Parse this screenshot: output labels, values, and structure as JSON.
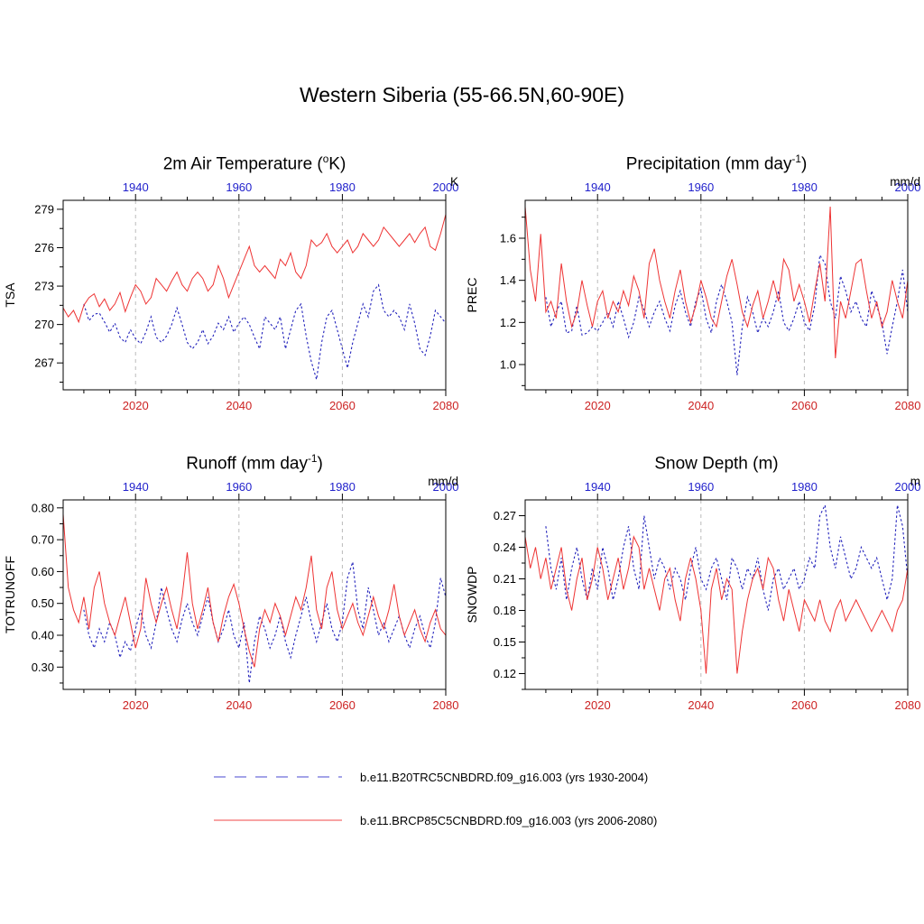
{
  "title": "Western Siberia (55-66.5N,60-90E)",
  "colors": {
    "top_axis_labels": "#2222cc",
    "bottom_axis_labels": "#cc2222",
    "grid": "#bbbbbb",
    "historical_line": "#2222bb",
    "rcp85_line": "#ee3333"
  },
  "legend": {
    "items": [
      {
        "label": "b.e11.B20TRC5CNBDRD.f09_g16.003 (yrs 1930-2004)",
        "color": "#3333cc",
        "style": "dashed"
      },
      {
        "label": "b.e11.BRCP85C5CNBDRD.f09_g16.003 (yrs 2006-2080)",
        "color": "#ee3333",
        "style": "solid"
      }
    ]
  },
  "chart_data": [
    {
      "type": "line",
      "title_pre": "2m Air Temperature (",
      "title_sup": "o",
      "title_post": "K)",
      "ylabel": "TSA",
      "unit": "K",
      "ylim": [
        264.9,
        279.7
      ],
      "yticks": [
        267,
        270,
        273,
        276,
        279
      ],
      "ytick_labels": [
        "267",
        "270",
        "273",
        "276",
        "279"
      ],
      "top_axis": {
        "domain": [
          1926,
          2000
        ],
        "ticks": [
          1940,
          1960,
          1980,
          2000
        ]
      },
      "bottom_axis": {
        "domain": [
          2006,
          2080
        ],
        "ticks": [
          2020,
          2040,
          2060,
          2080
        ]
      },
      "grid_years": [
        2020,
        2040,
        2060
      ],
      "series": [
        {
          "id": "historical",
          "axis": "top",
          "start_year": 1930,
          "color": "#2222bb",
          "style": "dashed",
          "values": [
            271.6,
            270.3,
            270.8,
            270.9,
            270.2,
            269.4,
            270.1,
            269.0,
            268.6,
            269.6,
            268.9,
            268.5,
            269.4,
            270.6,
            269.0,
            268.6,
            269.1,
            270.0,
            271.3,
            270.0,
            268.6,
            268.1,
            268.6,
            269.6,
            268.5,
            269.1,
            270.1,
            269.6,
            270.6,
            269.4,
            270.1,
            270.6,
            270.0,
            269.0,
            268.1,
            270.6,
            270.1,
            269.6,
            270.6,
            268.1,
            269.6,
            271.1,
            271.6,
            269.1,
            267.1,
            265.7,
            268.6,
            270.6,
            271.1,
            269.6,
            268.1,
            266.6,
            268.6,
            270.1,
            271.6,
            270.6,
            272.6,
            273.1,
            271.1,
            270.6,
            271.1,
            270.6,
            269.6,
            271.6,
            270.1,
            268.1,
            267.6,
            269.1,
            271.1,
            270.6,
            270.1,
            270.6,
            270.1,
            269.6,
            269.1
          ]
        },
        {
          "id": "rcp85",
          "axis": "bottom",
          "start_year": 2006,
          "color": "#ee3333",
          "style": "solid",
          "values": [
            271.3,
            270.6,
            271.1,
            270.2,
            271.5,
            272.1,
            272.4,
            271.4,
            272.0,
            271.1,
            271.6,
            272.5,
            271.0,
            272.1,
            273.1,
            272.6,
            271.6,
            272.1,
            273.6,
            273.1,
            272.6,
            273.4,
            274.1,
            273.1,
            272.6,
            273.6,
            274.1,
            273.6,
            272.6,
            273.1,
            274.6,
            273.6,
            272.1,
            273.1,
            274.1,
            275.1,
            276.1,
            274.6,
            274.1,
            274.6,
            274.1,
            273.6,
            275.1,
            274.6,
            275.6,
            274.1,
            273.6,
            274.6,
            276.6,
            276.1,
            276.4,
            277.1,
            276.1,
            275.6,
            276.1,
            276.6,
            275.6,
            276.1,
            277.1,
            276.6,
            276.1,
            276.6,
            277.6,
            277.1,
            276.6,
            276.1,
            276.6,
            277.1,
            276.4,
            277.1,
            277.6,
            276.1,
            275.8,
            277.1,
            278.6
          ]
        }
      ]
    },
    {
      "type": "line",
      "title_pre": "Precipitation (mm day",
      "title_sup": "-1",
      "title_post": ")",
      "ylabel": "PREC",
      "unit": "mm/d",
      "ylim": [
        0.88,
        1.78
      ],
      "yticks": [
        1.0,
        1.2,
        1.4,
        1.6
      ],
      "ytick_labels": [
        "1.0",
        "1.2",
        "1.4",
        "1.6"
      ],
      "top_axis": {
        "domain": [
          1926,
          2000
        ],
        "ticks": [
          1940,
          1960,
          1980,
          2000
        ]
      },
      "bottom_axis": {
        "domain": [
          2006,
          2080
        ],
        "ticks": [
          2020,
          2040,
          2060,
          2080
        ]
      },
      "grid_years": [
        2020,
        2040,
        2060
      ],
      "series": [
        {
          "id": "historical",
          "axis": "top",
          "start_year": 1930,
          "color": "#2222bb",
          "style": "dashed",
          "values": [
            1.32,
            1.18,
            1.25,
            1.3,
            1.15,
            1.16,
            1.28,
            1.14,
            1.15,
            1.18,
            1.16,
            1.2,
            1.25,
            1.18,
            1.3,
            1.22,
            1.13,
            1.2,
            1.32,
            1.26,
            1.18,
            1.25,
            1.3,
            1.22,
            1.16,
            1.28,
            1.35,
            1.25,
            1.18,
            1.3,
            1.36,
            1.22,
            1.15,
            1.3,
            1.38,
            1.3,
            1.2,
            0.95,
            1.18,
            1.32,
            1.25,
            1.15,
            1.22,
            1.18,
            1.25,
            1.35,
            1.2,
            1.16,
            1.22,
            1.3,
            1.2,
            1.16,
            1.28,
            1.52,
            1.48,
            1.3,
            1.22,
            1.42,
            1.35,
            1.25,
            1.3,
            1.22,
            1.18,
            1.35,
            1.28,
            1.2,
            1.05,
            1.18,
            1.3,
            1.45,
            1.25,
            1.18,
            1.42,
            1.48,
            1.3
          ]
        },
        {
          "id": "rcp85",
          "axis": "bottom",
          "start_year": 2006,
          "color": "#ee3333",
          "style": "solid",
          "values": [
            1.75,
            1.45,
            1.3,
            1.62,
            1.25,
            1.3,
            1.22,
            1.48,
            1.3,
            1.18,
            1.25,
            1.4,
            1.28,
            1.18,
            1.3,
            1.35,
            1.22,
            1.3,
            1.25,
            1.35,
            1.28,
            1.42,
            1.35,
            1.22,
            1.48,
            1.55,
            1.4,
            1.3,
            1.22,
            1.35,
            1.45,
            1.3,
            1.2,
            1.28,
            1.4,
            1.32,
            1.22,
            1.18,
            1.3,
            1.42,
            1.5,
            1.38,
            1.25,
            1.18,
            1.28,
            1.35,
            1.22,
            1.3,
            1.4,
            1.3,
            1.5,
            1.45,
            1.3,
            1.38,
            1.3,
            1.2,
            1.35,
            1.48,
            1.3,
            1.75,
            1.03,
            1.3,
            1.22,
            1.35,
            1.48,
            1.5,
            1.35,
            1.22,
            1.3,
            1.18,
            1.25,
            1.4,
            1.3,
            1.22,
            1.4
          ]
        }
      ]
    },
    {
      "type": "line",
      "title_pre": "Runoff (mm day",
      "title_sup": "-1",
      "title_post": ")",
      "ylabel": "TOTRUNOFF",
      "unit": "mm/d",
      "ylim": [
        0.23,
        0.825
      ],
      "yticks": [
        0.3,
        0.4,
        0.5,
        0.6,
        0.7,
        0.8
      ],
      "ytick_labels": [
        "0.30",
        "0.40",
        "0.50",
        "0.60",
        "0.70",
        "0.80"
      ],
      "top_axis": {
        "domain": [
          1926,
          2000
        ],
        "ticks": [
          1940,
          1960,
          1980,
          2000
        ]
      },
      "bottom_axis": {
        "domain": [
          2006,
          2080
        ],
        "ticks": [
          2020,
          2040,
          2060,
          2080
        ]
      },
      "grid_years": [
        2020,
        2040,
        2060
      ],
      "series": [
        {
          "id": "historical",
          "axis": "top",
          "start_year": 1930,
          "color": "#2222bb",
          "style": "dashed",
          "values": [
            0.48,
            0.4,
            0.36,
            0.42,
            0.38,
            0.44,
            0.4,
            0.33,
            0.38,
            0.35,
            0.42,
            0.48,
            0.4,
            0.36,
            0.44,
            0.55,
            0.48,
            0.42,
            0.38,
            0.45,
            0.5,
            0.44,
            0.4,
            0.46,
            0.52,
            0.44,
            0.38,
            0.42,
            0.48,
            0.4,
            0.36,
            0.44,
            0.25,
            0.38,
            0.46,
            0.42,
            0.36,
            0.4,
            0.46,
            0.38,
            0.33,
            0.4,
            0.46,
            0.52,
            0.44,
            0.38,
            0.44,
            0.5,
            0.42,
            0.38,
            0.44,
            0.58,
            0.63,
            0.48,
            0.42,
            0.55,
            0.48,
            0.4,
            0.44,
            0.38,
            0.42,
            0.46,
            0.4,
            0.36,
            0.42,
            0.46,
            0.4,
            0.36,
            0.44,
            0.58,
            0.52,
            0.44,
            0.4,
            0.46,
            0.42
          ]
        },
        {
          "id": "rcp85",
          "axis": "bottom",
          "start_year": 2006,
          "color": "#ee3333",
          "style": "solid",
          "values": [
            0.78,
            0.55,
            0.48,
            0.44,
            0.52,
            0.42,
            0.55,
            0.6,
            0.5,
            0.44,
            0.4,
            0.46,
            0.52,
            0.44,
            0.36,
            0.42,
            0.58,
            0.5,
            0.44,
            0.5,
            0.55,
            0.48,
            0.42,
            0.52,
            0.66,
            0.5,
            0.42,
            0.48,
            0.55,
            0.44,
            0.38,
            0.46,
            0.52,
            0.56,
            0.5,
            0.42,
            0.35,
            0.3,
            0.42,
            0.48,
            0.44,
            0.5,
            0.46,
            0.4,
            0.46,
            0.52,
            0.48,
            0.55,
            0.65,
            0.48,
            0.42,
            0.55,
            0.6,
            0.48,
            0.42,
            0.46,
            0.5,
            0.44,
            0.4,
            0.46,
            0.52,
            0.46,
            0.42,
            0.48,
            0.56,
            0.46,
            0.4,
            0.44,
            0.48,
            0.42,
            0.38,
            0.44,
            0.48,
            0.42,
            0.4
          ]
        }
      ]
    },
    {
      "type": "line",
      "title_pre": "Snow Depth (m)",
      "title_sup": "",
      "title_post": "",
      "ylabel": "SNOWDP",
      "unit": "m",
      "ylim": [
        0.105,
        0.285
      ],
      "yticks": [
        0.12,
        0.15,
        0.18,
        0.21,
        0.24,
        0.27
      ],
      "ytick_labels": [
        "0.12",
        "0.15",
        "0.18",
        "0.21",
        "0.24",
        "0.27"
      ],
      "top_axis": {
        "domain": [
          1926,
          2000
        ],
        "ticks": [
          1940,
          1960,
          1980,
          2000
        ]
      },
      "bottom_axis": {
        "domain": [
          2006,
          2080
        ],
        "ticks": [
          2020,
          2040,
          2060,
          2080
        ]
      },
      "grid_years": [
        2020,
        2040,
        2060
      ],
      "series": [
        {
          "id": "historical",
          "axis": "top",
          "start_year": 1930,
          "color": "#2222bb",
          "style": "dashed",
          "values": [
            0.26,
            0.22,
            0.2,
            0.23,
            0.19,
            0.22,
            0.24,
            0.21,
            0.19,
            0.22,
            0.2,
            0.24,
            0.22,
            0.19,
            0.21,
            0.24,
            0.26,
            0.22,
            0.2,
            0.27,
            0.24,
            0.21,
            0.23,
            0.22,
            0.2,
            0.22,
            0.21,
            0.19,
            0.22,
            0.24,
            0.21,
            0.2,
            0.22,
            0.23,
            0.21,
            0.19,
            0.23,
            0.22,
            0.2,
            0.22,
            0.21,
            0.23,
            0.2,
            0.18,
            0.21,
            0.22,
            0.2,
            0.21,
            0.22,
            0.2,
            0.21,
            0.23,
            0.22,
            0.27,
            0.28,
            0.24,
            0.22,
            0.25,
            0.23,
            0.21,
            0.22,
            0.24,
            0.23,
            0.22,
            0.23,
            0.21,
            0.19,
            0.21,
            0.28,
            0.26,
            0.21,
            0.19,
            0.2,
            0.21,
            0.22
          ]
        },
        {
          "id": "rcp85",
          "axis": "bottom",
          "start_year": 2006,
          "color": "#ee3333",
          "style": "solid",
          "values": [
            0.25,
            0.22,
            0.24,
            0.21,
            0.23,
            0.2,
            0.22,
            0.24,
            0.2,
            0.18,
            0.21,
            0.23,
            0.19,
            0.21,
            0.24,
            0.22,
            0.19,
            0.21,
            0.23,
            0.2,
            0.22,
            0.25,
            0.24,
            0.2,
            0.22,
            0.2,
            0.18,
            0.21,
            0.22,
            0.19,
            0.17,
            0.21,
            0.23,
            0.21,
            0.18,
            0.12,
            0.2,
            0.22,
            0.19,
            0.21,
            0.2,
            0.12,
            0.16,
            0.19,
            0.21,
            0.22,
            0.2,
            0.23,
            0.22,
            0.19,
            0.17,
            0.2,
            0.18,
            0.16,
            0.19,
            0.18,
            0.17,
            0.19,
            0.17,
            0.16,
            0.18,
            0.19,
            0.17,
            0.18,
            0.19,
            0.18,
            0.17,
            0.16,
            0.17,
            0.18,
            0.17,
            0.16,
            0.18,
            0.19,
            0.22
          ]
        }
      ]
    }
  ]
}
